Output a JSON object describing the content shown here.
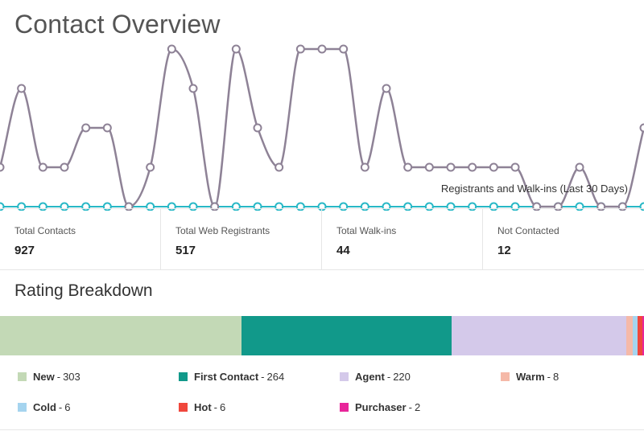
{
  "header": {
    "title": "Contact Overview"
  },
  "chart_data": {
    "type": "line",
    "caption": "Registrants and Walk-ins (Last 30 Days)",
    "series": [
      {
        "color": "#8e8296",
        "values": [
          2,
          6,
          2,
          2,
          4,
          4,
          0,
          2,
          8,
          6,
          0,
          8,
          4,
          2,
          8,
          8,
          8,
          2,
          6,
          2,
          2,
          2,
          2,
          2,
          2,
          0,
          0,
          2,
          0,
          0,
          4
        ]
      },
      {
        "color": "#28b8c6",
        "values": [
          0,
          0,
          0,
          0,
          0,
          0,
          0,
          0,
          0,
          0,
          0,
          0,
          0,
          0,
          0,
          0,
          0,
          0,
          0,
          0,
          0,
          0,
          0,
          0,
          0,
          0,
          0,
          0,
          0,
          0,
          0
        ]
      }
    ],
    "ylim": [
      0,
      8
    ]
  },
  "stats": [
    {
      "label": "Total Contacts",
      "value": "927"
    },
    {
      "label": "Total Web Registrants",
      "value": "517"
    },
    {
      "label": "Total Walk-ins",
      "value": "44"
    },
    {
      "label": "Not Contacted",
      "value": "12"
    }
  ],
  "rating": {
    "title": "Rating Breakdown",
    "items": [
      {
        "name": "New",
        "count": 303,
        "color": "#c3d9b6"
      },
      {
        "name": "First Contact",
        "count": 264,
        "color": "#11998a"
      },
      {
        "name": "Agent",
        "count": 220,
        "color": "#d4c9ea"
      },
      {
        "name": "Warm",
        "count": 8,
        "color": "#f5b9a8"
      },
      {
        "name": "Cold",
        "count": 6,
        "color": "#a5d4ef"
      },
      {
        "name": "Hot",
        "count": 6,
        "color": "#f0473c"
      },
      {
        "name": "Purchaser",
        "count": 2,
        "color": "#e8259a"
      }
    ]
  }
}
